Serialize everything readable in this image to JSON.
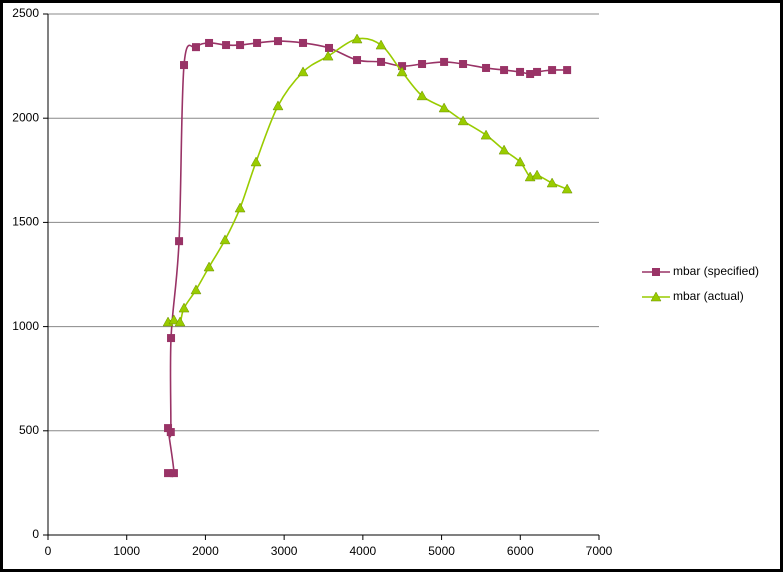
{
  "chart_data": {
    "type": "scatter",
    "smooth": true,
    "legend": "right",
    "grid": true,
    "xlim": [
      0,
      7000
    ],
    "xticks": [
      0,
      1000,
      2000,
      3000,
      4000,
      5000,
      6000,
      7000
    ],
    "ylim": [
      0,
      2500
    ],
    "yticks": [
      0,
      500,
      1000,
      1500,
      2000,
      2500
    ],
    "series": [
      {
        "name": "mbar (specified)",
        "color": "#993366",
        "marker": "square",
        "x": [
          1525,
          1600,
          1525,
          1560,
          1563,
          1665,
          1728,
          1880,
          2046,
          2262,
          2440,
          2656,
          2922,
          3240,
          3570,
          3926,
          4231,
          4498,
          4752,
          5032,
          5273,
          5565,
          5794,
          5997,
          6125,
          6213,
          6404,
          6595
        ],
        "values": [
          297,
          297,
          513,
          494,
          945,
          1410,
          2255,
          2341,
          2361,
          2351,
          2351,
          2361,
          2370,
          2361,
          2337,
          2279,
          2270,
          2250,
          2260,
          2270,
          2260,
          2241,
          2231,
          2222,
          2212,
          2222,
          2231,
          2231
        ]
      },
      {
        "name": "mbar (actual)",
        "color": "#99cc00",
        "marker": "triangle",
        "x": [
          1525,
          1600,
          1677,
          1728,
          1880,
          2046,
          2249,
          2440,
          2643,
          2922,
          3240,
          3558,
          3926,
          4231,
          4498,
          4752,
          5032,
          5273,
          5565,
          5794,
          5997,
          6125,
          6213,
          6404,
          6595
        ],
        "values": [
          1022,
          1032,
          1022,
          1089,
          1176,
          1286,
          1416,
          1569,
          1790,
          2059,
          2222,
          2298,
          2380,
          2351,
          2222,
          2107,
          2049,
          1987,
          1919,
          1847,
          1790,
          1718,
          1727,
          1689,
          1660
        ]
      }
    ]
  }
}
